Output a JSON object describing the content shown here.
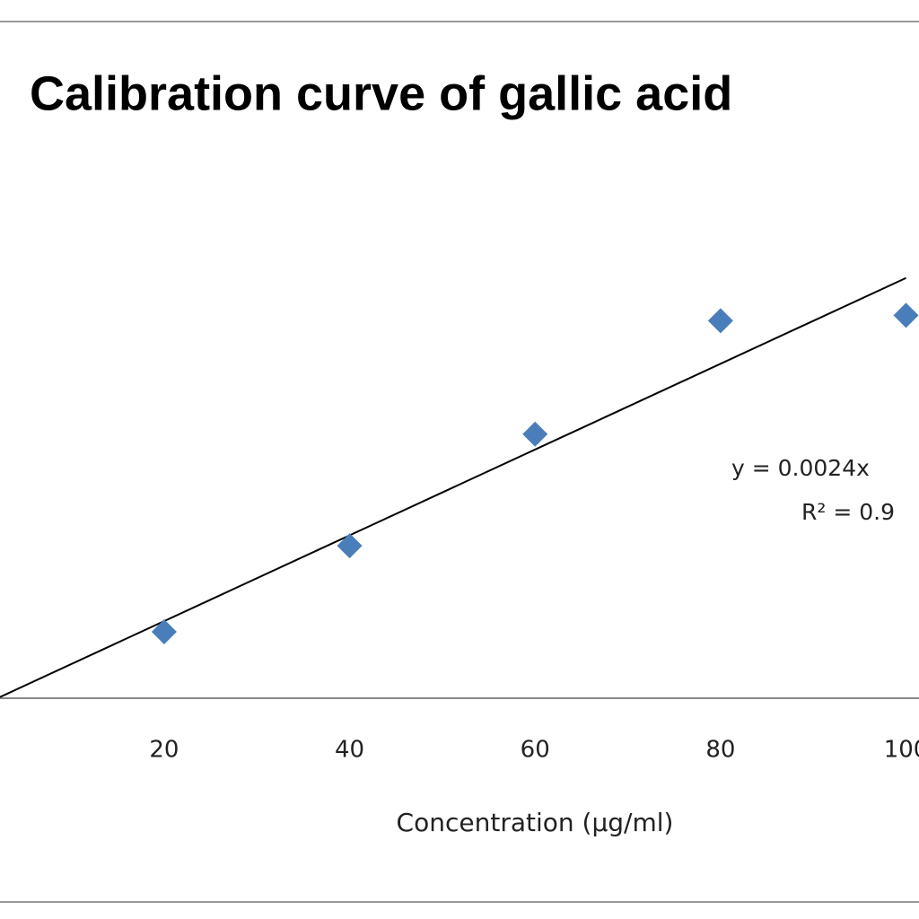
{
  "chart_data": {
    "type": "scatter",
    "title": "Calibration curve of gallic acid",
    "x_label": "Concentration (µg/ml)",
    "trendline_label": [
      "y = 0.0024x",
      "R² = 0.9"
    ],
    "series": [
      {
        "color": "#4a7ebb",
        "x": [
          20,
          40,
          60,
          80,
          100
        ],
        "values": [
          0.0375,
          0.086,
          0.149,
          0.213,
          0.216
        ]
      }
    ],
    "trendline": true,
    "xlim": [
      2.3,
      101.4
    ],
    "xticks": [
      20,
      40,
      60,
      80,
      100
    ],
    "ylim": [
      0,
      0.3
    ]
  }
}
